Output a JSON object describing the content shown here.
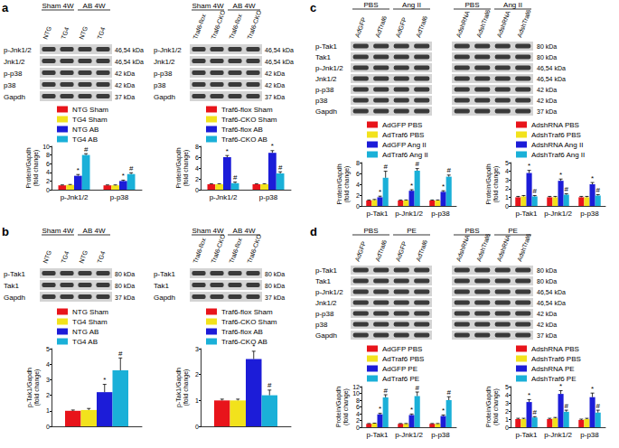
{
  "panel_letters": [
    "a",
    "b",
    "c",
    "d"
  ],
  "blots": [
    {
      "headers": [
        "Sham 4W",
        "AB 4W"
      ],
      "lanes": [
        "NTG",
        "TG4",
        "NTG",
        "TG4"
      ],
      "rows": [
        "p-Jnk1/2",
        "Jnk1/2",
        "p-p38",
        "p38",
        "Gapdh"
      ],
      "kda": [
        "46,54 kDa",
        "46,54 kDa",
        "42 kDa",
        "42 kDa",
        "37 kDa"
      ]
    },
    {
      "headers": [
        "Sham 4W",
        "AB 4W"
      ],
      "lanes": [
        "Traf6-flox",
        "Traf6-CKO",
        "Traf6-flox",
        "Traf6-CKO"
      ],
      "rows": [
        "p-Jnk1/2",
        "Jnk1/2",
        "p-p38",
        "p38",
        "Gapdh"
      ],
      "kda": [
        "46,54 kDa",
        "46,54 kDa",
        "42 kDa",
        "42 kDa",
        "37 kDa"
      ]
    },
    {
      "headers": [
        "Sham 4W",
        "AB 4W"
      ],
      "lanes": [
        "NTG",
        "TG4",
        "NTG",
        "TG4"
      ],
      "rows": [
        "p-Tak1",
        "Tak1",
        "Gapdh"
      ],
      "kda": [
        "80 kDa",
        "80 kDa",
        "37 kDa"
      ]
    },
    {
      "headers": [
        "Sham 4W",
        "AB 4W"
      ],
      "lanes": [
        "Traf6-flox",
        "Traf6-CKO",
        "Traf6-flox",
        "Traf6-CKO"
      ],
      "rows": [
        "p-Tak1",
        "Tak1",
        "Gapdh"
      ],
      "kda": [
        "80 kDa",
        "80 kDa",
        "37 kDa"
      ]
    },
    {
      "headers": [
        "PBS",
        "Ang II"
      ],
      "lanes": [
        "AdGFP",
        "AdTraf6",
        "AdGFP",
        "AdTraf6"
      ],
      "rows": [
        "p-Tak1",
        "Tak1",
        "p-Jnk1/2",
        "Jnk1/2",
        "p-p38",
        "p38",
        "Gapdh"
      ]
    },
    {
      "headers": [
        "PBS",
        "Ang II"
      ],
      "lanes": [
        "AdshRNA",
        "AdshTraf6",
        "AdshRNA",
        "AdshTraf6"
      ],
      "kda": [
        "80 kDa",
        "80 kDa",
        "46,54 kDa",
        "46,54 kDa",
        "42 kDa",
        "42 kDa",
        "37 kDa"
      ]
    },
    {
      "headers": [
        "PBS",
        "PE"
      ],
      "lanes": [
        "AdGFP",
        "AdTraf6",
        "AdGFP",
        "AdTraf6"
      ],
      "rows": [
        "p-Tak1",
        "Tak1",
        "p-Jnk1/2",
        "Jnk1/2",
        "p-p38",
        "p38",
        "Gapdh"
      ]
    },
    {
      "headers": [
        "PBS",
        "PE"
      ],
      "lanes": [
        "AdshRNA",
        "AdshTraf6",
        "AdshRNA",
        "AdshTraf6"
      ],
      "kda": [
        "80 kDa",
        "80 kDa",
        "46,54 kDa",
        "46,54 kDa",
        "42 kDa",
        "42 kDa",
        "37 kDa"
      ]
    }
  ],
  "chart_data": [
    {
      "type": "bar",
      "categories": [
        "p-Jnk1/2",
        "p-p38"
      ],
      "ylabel": "Protein/Gapdh (fold change)",
      "ylim": [
        0,
        10
      ],
      "yticks": [
        0,
        2,
        4,
        6,
        8,
        10
      ],
      "grid": false,
      "legend": "upper left",
      "series": [
        {
          "name": "NTG Sham",
          "color": "#e8141b",
          "values": [
            1.0,
            1.0
          ],
          "errors": [
            0.1,
            0.1
          ],
          "significance": [
            null,
            null
          ]
        },
        {
          "name": "TG4 Sham",
          "color": "#f2e21c",
          "values": [
            1.1,
            1.0
          ],
          "errors": [
            0.1,
            0.1
          ],
          "significance": [
            null,
            null
          ]
        },
        {
          "name": "NTG AB",
          "color": "#1c1cd8",
          "values": [
            3.2,
            2.0
          ],
          "errors": [
            0.3,
            0.2
          ],
          "significance": [
            "*",
            "*"
          ]
        },
        {
          "name": "TG4 AB",
          "color": "#1ab0d8",
          "values": [
            8.0,
            3.6
          ],
          "errors": [
            0.3,
            0.3
          ],
          "significance": [
            "#",
            "#"
          ]
        }
      ]
    },
    {
      "type": "bar",
      "categories": [
        "p-Jnk1/2",
        "p-p38"
      ],
      "ylabel": "Protein/Gapdh (fold change)",
      "ylim": [
        0,
        8
      ],
      "yticks": [
        0,
        2,
        4,
        6,
        8
      ],
      "grid": false,
      "legend": "upper left",
      "series": [
        {
          "name": "Traf6-flox Sham",
          "color": "#e8141b",
          "values": [
            1.0,
            1.0
          ],
          "errors": [
            0.1,
            0.1
          ],
          "significance": [
            null,
            null
          ]
        },
        {
          "name": "Traf6-CKO Sham",
          "color": "#f2e21c",
          "values": [
            1.0,
            1.0
          ],
          "errors": [
            0.1,
            0.1
          ],
          "significance": [
            null,
            null
          ]
        },
        {
          "name": "Traf6-flox AB",
          "color": "#1c1cd8",
          "values": [
            6.0,
            6.8
          ],
          "errors": [
            0.3,
            0.4
          ],
          "significance": [
            "*",
            "*"
          ]
        },
        {
          "name": "Traf6-CKO AB",
          "color": "#1ab0d8",
          "values": [
            1.2,
            3.0
          ],
          "errors": [
            0.2,
            0.3
          ],
          "significance": [
            "#",
            "#"
          ]
        }
      ]
    },
    {
      "type": "bar",
      "categories": [
        null
      ],
      "ylabel": "p-Tak1/Gapdh (fold change)",
      "ylim": [
        0,
        5
      ],
      "yticks": [
        0,
        1,
        2,
        3,
        4,
        5
      ],
      "grid": false,
      "legend": "upper left",
      "series": [
        {
          "name": "NTG Sham",
          "color": "#e8141b",
          "values": [
            1.0
          ],
          "errors": [
            0.05
          ],
          "significance": [
            null
          ]
        },
        {
          "name": "TG4 Sham",
          "color": "#f2e21c",
          "values": [
            1.05
          ],
          "errors": [
            0.1
          ],
          "significance": [
            null
          ]
        },
        {
          "name": "NTG AB",
          "color": "#1c1cd8",
          "values": [
            2.2
          ],
          "errors": [
            0.5
          ],
          "significance": [
            "*"
          ]
        },
        {
          "name": "TG4 AB",
          "color": "#1ab0d8",
          "values": [
            3.6
          ],
          "errors": [
            0.8
          ],
          "significance": [
            "#"
          ]
        }
      ]
    },
    {
      "type": "bar",
      "categories": [
        null
      ],
      "ylabel": "p-Tak1/Gapdh (fold change)",
      "ylim": [
        0,
        3
      ],
      "yticks": [
        0,
        1,
        2,
        3
      ],
      "grid": false,
      "legend": "upper left",
      "series": [
        {
          "name": "Traf6-flox Sham",
          "color": "#e8141b",
          "values": [
            1.0
          ],
          "errors": [
            0.05
          ],
          "significance": [
            null
          ]
        },
        {
          "name": "Traf6-CKO Sham",
          "color": "#f2e21c",
          "values": [
            1.0
          ],
          "errors": [
            0.05
          ],
          "significance": [
            null
          ]
        },
        {
          "name": "Traf6-flox AB",
          "color": "#1c1cd8",
          "values": [
            2.6
          ],
          "errors": [
            0.3
          ],
          "significance": [
            "*"
          ]
        },
        {
          "name": "Traf6-CKO AB",
          "color": "#1ab0d8",
          "values": [
            1.2
          ],
          "errors": [
            0.2
          ],
          "significance": [
            "#"
          ]
        }
      ]
    },
    {
      "type": "bar",
      "categories": [
        "p-Tak1",
        "p-Jnk1/2",
        "p-p38"
      ],
      "ylabel": "Protein/Gapdh (fold change)",
      "ylim": [
        0,
        8
      ],
      "yticks": [
        0,
        2,
        4,
        6,
        8
      ],
      "grid": false,
      "legend": "upper left",
      "series": [
        {
          "name": "AdGFP PBS",
          "color": "#e8141b",
          "values": [
            1.0,
            1.0,
            1.0
          ],
          "errors": [
            0.1,
            0.1,
            0.1
          ],
          "significance": [
            null,
            null,
            null
          ]
        },
        {
          "name": "AdTraf6 PBS",
          "color": "#f2e21c",
          "values": [
            1.1,
            1.0,
            1.0
          ],
          "errors": [
            0.1,
            0.1,
            0.1
          ],
          "significance": [
            null,
            null,
            null
          ]
        },
        {
          "name": "AdGFP Ang II",
          "color": "#1c1cd8",
          "values": [
            1.6,
            2.8,
            2.6
          ],
          "errors": [
            0.2,
            0.2,
            0.2
          ],
          "significance": [
            "*",
            "*",
            "*"
          ]
        },
        {
          "name": "AdTraf6 Ang II",
          "color": "#1ab0d8",
          "values": [
            5.2,
            6.5,
            5.4
          ],
          "errors": [
            1.2,
            0.4,
            0.3
          ],
          "significance": [
            "#",
            "#",
            "#"
          ]
        }
      ]
    },
    {
      "type": "bar",
      "categories": [
        "p-Tak1",
        "p-Jnk1/2",
        "p-p38"
      ],
      "ylabel": "Protein/Gapdh (fold change)",
      "ylim": [
        0,
        5
      ],
      "yticks": [
        0,
        1,
        2,
        3,
        4,
        5
      ],
      "grid": false,
      "legend": "upper left",
      "series": [
        {
          "name": "AdshRNA PBS",
          "color": "#e8141b",
          "values": [
            1.0,
            1.0,
            1.0
          ],
          "errors": [
            0.1,
            0.1,
            0.1
          ],
          "significance": [
            null,
            null,
            null
          ]
        },
        {
          "name": "AdshTraf6 PBS",
          "color": "#f2e21c",
          "values": [
            1.1,
            1.0,
            1.0
          ],
          "errors": [
            0.1,
            0.1,
            0.1
          ],
          "significance": [
            null,
            null,
            null
          ]
        },
        {
          "name": "AdshRNA Ang II",
          "color": "#1c1cd8",
          "values": [
            3.8,
            2.9,
            2.5
          ],
          "errors": [
            0.3,
            0.2,
            0.2
          ],
          "significance": [
            "*",
            "*",
            "*"
          ]
        },
        {
          "name": "AdshTraf6 Ang II",
          "color": "#1ab0d8",
          "values": [
            1.1,
            1.3,
            1.2
          ],
          "errors": [
            0.1,
            0.1,
            0.1
          ],
          "significance": [
            "#",
            "#",
            "#"
          ]
        }
      ]
    },
    {
      "type": "bar",
      "categories": [
        "p-Tak1",
        "p-Jnk1/2",
        "p-p38"
      ],
      "ylabel": "Protein/Gapdh (fold change)",
      "ylim": [
        0,
        12
      ],
      "yticks": [
        0,
        2,
        4,
        6,
        8,
        10,
        12
      ],
      "grid": false,
      "legend": "upper left",
      "series": [
        {
          "name": "AdGFP PBS",
          "color": "#e8141b",
          "values": [
            1.0,
            1.0,
            1.0
          ],
          "errors": [
            0.1,
            0.1,
            0.1
          ],
          "significance": [
            null,
            null,
            null
          ]
        },
        {
          "name": "AdTraf6 PBS",
          "color": "#f2e21c",
          "values": [
            1.1,
            1.0,
            1.0
          ],
          "errors": [
            0.1,
            0.1,
            0.1
          ],
          "significance": [
            null,
            null,
            null
          ]
        },
        {
          "name": "AdGFP PE",
          "color": "#1c1cd8",
          "values": [
            3.8,
            3.6,
            3.3
          ],
          "errors": [
            0.3,
            0.3,
            0.3
          ],
          "significance": [
            "*",
            "*",
            "*"
          ]
        },
        {
          "name": "AdTraf6 PE",
          "color": "#1ab0d8",
          "values": [
            8.8,
            9.2,
            8.0
          ],
          "errors": [
            0.8,
            1.2,
            1.0
          ],
          "significance": [
            "#",
            "#",
            "#"
          ]
        }
      ]
    },
    {
      "type": "bar",
      "categories": [
        "p-Tak1",
        "p-Jnk1/2",
        "p-p38"
      ],
      "ylabel": "Protein/Gapdh (fold change)",
      "ylim": [
        0,
        5
      ],
      "yticks": [
        0,
        1,
        2,
        3,
        4,
        5
      ],
      "grid": false,
      "legend": "upper left",
      "series": [
        {
          "name": "AdshRNA PBS",
          "color": "#e8141b",
          "values": [
            1.0,
            1.0,
            0.9
          ],
          "errors": [
            0.1,
            0.1,
            0.1
          ],
          "significance": [
            null,
            null,
            null
          ]
        },
        {
          "name": "AdshTraf6 PBS",
          "color": "#f2e21c",
          "values": [
            1.0,
            1.1,
            1.0
          ],
          "errors": [
            0.1,
            0.1,
            0.1
          ],
          "significance": [
            null,
            null,
            null
          ]
        },
        {
          "name": "AdshRNA PE",
          "color": "#1c1cd8",
          "values": [
            3.1,
            4.1,
            3.7
          ],
          "errors": [
            0.3,
            0.4,
            0.5
          ],
          "significance": [
            "*",
            "*",
            "*"
          ]
        },
        {
          "name": "AdshTraf6 PE",
          "color": "#1ab0d8",
          "values": [
            1.2,
            1.9,
            1.8
          ],
          "errors": [
            0.1,
            0.2,
            0.3
          ],
          "significance": [
            "#",
            "#",
            "#"
          ]
        }
      ]
    }
  ]
}
